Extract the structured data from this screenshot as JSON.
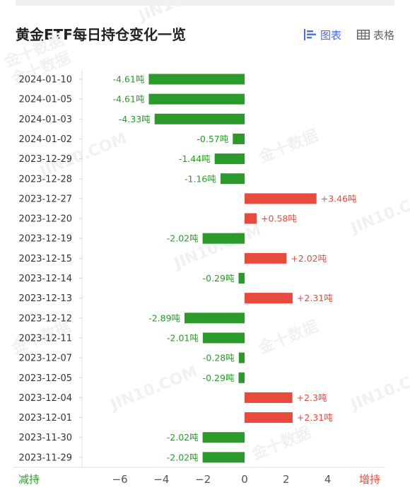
{
  "header": {
    "title": "黄金ETF每日持仓变化一览",
    "tabs": [
      {
        "label": "图表",
        "icon": "bar-chart-icon",
        "active": true
      },
      {
        "label": "表格",
        "icon": "table-icon",
        "active": false
      }
    ]
  },
  "legend": {
    "decrease_label": "减持",
    "increase_label": "增持"
  },
  "colors": {
    "decrease": "#2a9a2a",
    "increase": "#e84a3d",
    "accent": "#4a6fd6"
  },
  "watermark": {
    "cn": "金十数据",
    "en": "JIN10.COM"
  },
  "chart_data": {
    "type": "bar",
    "orientation": "horizontal",
    "categories": [
      "2024-01-10",
      "2024-01-05",
      "2024-01-03",
      "2024-01-02",
      "2023-12-29",
      "2023-12-28",
      "2023-12-27",
      "2023-12-20",
      "2023-12-19",
      "2023-12-15",
      "2023-12-14",
      "2023-12-13",
      "2023-12-12",
      "2023-12-11",
      "2023-12-07",
      "2023-12-05",
      "2023-12-04",
      "2023-12-01",
      "2023-11-30",
      "2023-11-29"
    ],
    "values": [
      -4.61,
      -4.61,
      -4.33,
      -0.57,
      -1.44,
      -1.16,
      3.46,
      0.58,
      -2.02,
      2.02,
      -0.29,
      2.31,
      -2.89,
      -2.01,
      -0.28,
      -0.29,
      2.3,
      2.31,
      -2.02,
      -2.02
    ],
    "labels": [
      "-4.61吨",
      "-4.61吨",
      "-4.33吨",
      "-0.57吨",
      "-1.44吨",
      "-1.16吨",
      "+3.46吨",
      "+0.58吨",
      "-2.02吨",
      "+2.02吨",
      "-0.29吨",
      "+2.31吨",
      "-2.89吨",
      "-2.01吨",
      "-0.28吨",
      "-0.29吨",
      "+2.3吨",
      "+2.31吨",
      "-2.02吨",
      "-2.02吨"
    ],
    "xlim": [
      -6,
      4
    ],
    "xticks": [
      "−6",
      "−4",
      "−2",
      "0",
      "2",
      "4"
    ],
    "xtick_values": [
      -6,
      -4,
      -2,
      0,
      2,
      4
    ]
  }
}
